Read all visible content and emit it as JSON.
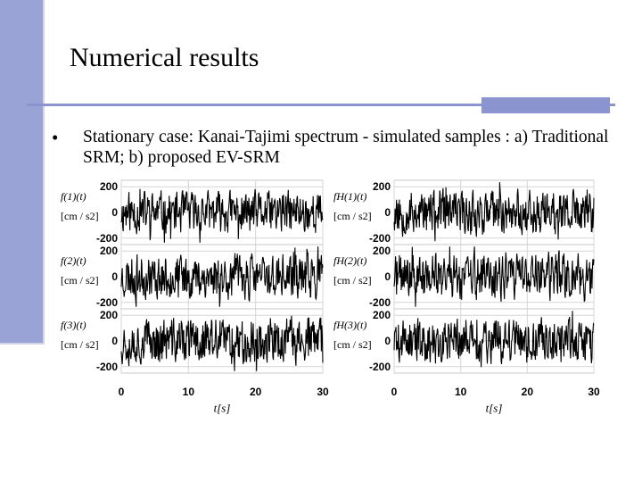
{
  "slide": {
    "title": "Numerical results",
    "bullet_symbol": "•",
    "bullet_text": "Stationary case: Kanai-Tajimi spectrum - simulated samples : a) Traditional SRM; b) proposed EV-SRM"
  },
  "colors": {
    "accent": "#8c94cf",
    "left_bar": "#9aa3d6",
    "signal": "#000000"
  },
  "chart_data": [
    {
      "type": "line",
      "panel": "a) Traditional SRM",
      "x_ticks": [
        "0",
        "10",
        "20",
        "30"
      ],
      "xlabel": "t[s]",
      "xlim": [
        0,
        30
      ],
      "y_ticks": [
        "200",
        "0",
        "-200"
      ],
      "ylim": [
        -250,
        250
      ],
      "grid": true,
      "series": [
        {
          "name": "f(1)(t)",
          "ylabel_unit": "[cm / s2]",
          "seed": 11,
          "amplitude": 110
        },
        {
          "name": "f(2)(t)",
          "ylabel_unit": "[cm / s2]",
          "seed": 23,
          "amplitude": 115
        },
        {
          "name": "f(3)(t)",
          "ylabel_unit": "[cm / s2]",
          "seed": 37,
          "amplitude": 120
        }
      ]
    },
    {
      "type": "line",
      "panel": "b) proposed EV-SRM",
      "x_ticks": [
        "0",
        "10",
        "20",
        "30"
      ],
      "xlabel": "t[s]",
      "xlim": [
        0,
        30
      ],
      "y_ticks": [
        "200",
        "0",
        "-200"
      ],
      "ylim": [
        -250,
        250
      ],
      "grid": true,
      "series": [
        {
          "name": "fH(1)(t)",
          "ylabel_unit": "[cm / s2]",
          "seed": 53,
          "amplitude": 115
        },
        {
          "name": "fH(2)(t)",
          "ylabel_unit": "[cm / s2]",
          "seed": 71,
          "amplitude": 120
        },
        {
          "name": "fH(3)(t)",
          "ylabel_unit": "[cm / s2]",
          "seed": 89,
          "amplitude": 115
        }
      ]
    }
  ]
}
